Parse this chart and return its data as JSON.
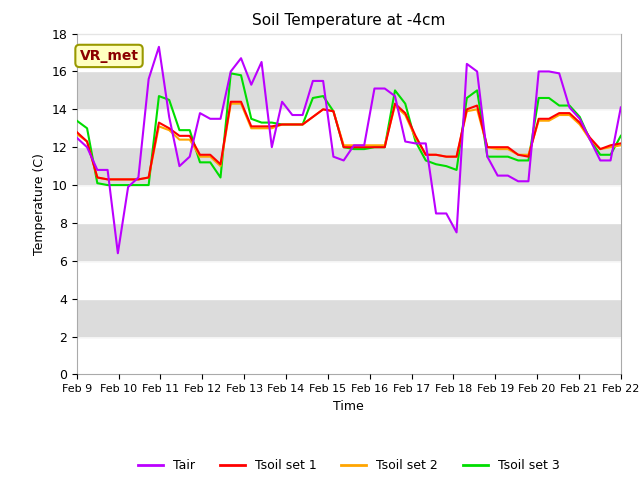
{
  "title": "Soil Temperature at -4cm",
  "xlabel": "Time",
  "ylabel": "Temperature (C)",
  "ylim": [
    0,
    18
  ],
  "yticks": [
    0,
    2,
    4,
    6,
    8,
    10,
    12,
    14,
    16,
    18
  ],
  "x_labels": [
    "Feb 9",
    "Feb 10",
    "Feb 11",
    "Feb 12",
    "Feb 13",
    "Feb 14",
    "Feb 15",
    "Feb 16",
    "Feb 17",
    "Feb 18",
    "Feb 19",
    "Feb 20",
    "Feb 21",
    "Feb 22"
  ],
  "annotation_text": "VR_met",
  "annotation_color": "#8B0000",
  "annotation_bg": "#FFFFC0",
  "annotation_edge": "#999900",
  "band_color_light": "#FFFFFF",
  "band_color_dark": "#DCDCDC",
  "colors": {
    "Tair": "#BB00FF",
    "Tsoil1": "#FF0000",
    "Tsoil2": "#FFA500",
    "Tsoil3": "#00DD00"
  },
  "Tair": [
    12.5,
    12.0,
    10.8,
    10.8,
    6.4,
    9.9,
    10.4,
    15.6,
    17.3,
    13.6,
    11.0,
    11.5,
    13.8,
    13.5,
    13.5,
    16.0,
    16.7,
    15.3,
    16.5,
    12.0,
    14.4,
    13.7,
    13.7,
    15.5,
    15.5,
    11.5,
    11.3,
    12.1,
    12.1,
    15.1,
    15.1,
    14.7,
    12.3,
    12.2,
    12.2,
    8.5,
    8.5,
    7.5,
    16.4,
    16.0,
    11.5,
    10.5,
    10.5,
    10.2,
    10.2,
    16.0,
    16.0,
    15.9,
    14.1,
    13.5,
    12.4,
    11.3,
    11.3,
    14.1
  ],
  "Tsoil1": [
    12.8,
    12.3,
    10.4,
    10.3,
    10.3,
    10.3,
    10.3,
    10.4,
    13.3,
    13.0,
    12.6,
    12.6,
    11.6,
    11.6,
    11.1,
    14.4,
    14.4,
    13.1,
    13.1,
    13.1,
    13.2,
    13.2,
    13.2,
    13.6,
    14.0,
    13.9,
    12.0,
    12.0,
    12.0,
    12.0,
    12.0,
    14.3,
    13.8,
    12.6,
    11.6,
    11.6,
    11.5,
    11.5,
    14.0,
    14.2,
    12.0,
    12.0,
    12.0,
    11.6,
    11.5,
    13.5,
    13.5,
    13.8,
    13.8,
    13.3,
    12.5,
    11.9,
    12.1,
    12.2
  ],
  "Tsoil2": [
    12.7,
    12.3,
    10.4,
    10.3,
    10.3,
    10.3,
    10.3,
    10.4,
    13.1,
    12.9,
    12.4,
    12.4,
    11.5,
    11.5,
    11.0,
    14.3,
    14.3,
    13.0,
    13.0,
    13.0,
    13.2,
    13.2,
    13.2,
    13.6,
    14.0,
    13.9,
    12.1,
    12.1,
    12.1,
    12.1,
    12.1,
    14.2,
    13.7,
    12.5,
    11.6,
    11.6,
    11.5,
    11.5,
    13.9,
    14.0,
    12.0,
    11.9,
    11.9,
    11.6,
    11.6,
    13.4,
    13.4,
    13.7,
    13.7,
    13.2,
    12.4,
    11.9,
    12.0,
    12.1
  ],
  "Tsoil3": [
    13.4,
    13.0,
    10.1,
    10.0,
    10.0,
    10.0,
    10.0,
    10.0,
    14.7,
    14.5,
    12.9,
    12.9,
    11.2,
    11.2,
    10.4,
    15.9,
    15.8,
    13.5,
    13.3,
    13.3,
    13.2,
    13.2,
    13.2,
    14.6,
    14.7,
    13.9,
    12.0,
    11.9,
    11.9,
    12.0,
    12.0,
    15.0,
    14.3,
    12.3,
    11.3,
    11.1,
    11.0,
    10.8,
    14.6,
    15.0,
    11.5,
    11.5,
    11.5,
    11.3,
    11.3,
    14.6,
    14.6,
    14.2,
    14.2,
    13.6,
    12.4,
    11.6,
    11.6,
    12.6
  ],
  "n_points": 54,
  "fig_bg": "#FFFFFF",
  "linewidth": 1.5,
  "legend_labels": [
    "Tair",
    "Tsoil set 1",
    "Tsoil set 2",
    "Tsoil set 3"
  ]
}
